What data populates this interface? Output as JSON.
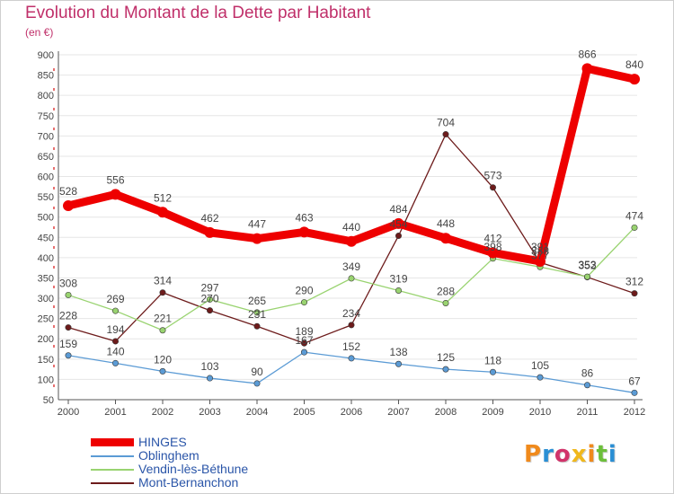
{
  "title": "Evolution du Montant de la Dette par Habitant",
  "subtitle": "(en €)",
  "logo_text": "Proxiti",
  "chart_data": {
    "type": "line",
    "xlabel": "",
    "ylabel": "",
    "x": [
      "2000",
      "2001",
      "2002",
      "2003",
      "2004",
      "2005",
      "2006",
      "2007",
      "2008",
      "2009",
      "2010",
      "2011",
      "2012"
    ],
    "ylim": [
      50,
      900
    ],
    "yticks": [
      50,
      100,
      150,
      200,
      250,
      300,
      350,
      400,
      450,
      500,
      550,
      600,
      650,
      700,
      750,
      800,
      850,
      900
    ],
    "grid": "horizontal",
    "legend_placement": "bottom-left",
    "series": [
      {
        "name": "HINGES",
        "color": "#ee0000",
        "values": [
          528,
          556,
          512,
          462,
          447,
          463,
          440,
          484,
          448,
          412,
          391,
          866,
          840
        ]
      },
      {
        "name": "Oblinghem",
        "color": "#5b9bd5",
        "values": [
          159,
          140,
          120,
          103,
          90,
          167,
          152,
          138,
          125,
          118,
          105,
          86,
          67
        ]
      },
      {
        "name": "Vendin-lès-Béthune",
        "color": "#99d370",
        "values": [
          308,
          269,
          221,
          297,
          265,
          290,
          349,
          319,
          288,
          398,
          377,
          353,
          474
        ]
      },
      {
        "name": "Mont-Bernanchon",
        "color": "#6d1b1b",
        "values": [
          228,
          194,
          314,
          270,
          231,
          189,
          234,
          454,
          704,
          573,
          388,
          352,
          312
        ]
      }
    ],
    "data_labels": [
      [
        "528",
        "556",
        "512",
        "462",
        "447",
        "463",
        "440",
        "484",
        "448",
        "412",
        "391",
        "866",
        "840"
      ],
      [
        "159",
        "140",
        "120",
        "103",
        "90",
        "167",
        "152",
        "138",
        "125",
        "118",
        "105",
        "86",
        "67"
      ],
      [
        "308",
        "269",
        "221",
        "297",
        "265",
        "290",
        "349",
        "319",
        "288",
        "398",
        "377",
        "353",
        "474"
      ],
      [
        "228",
        "194",
        "314",
        "270",
        "231",
        "189",
        "234",
        "454",
        "704",
        "573",
        "388",
        "352",
        "312"
      ]
    ]
  }
}
